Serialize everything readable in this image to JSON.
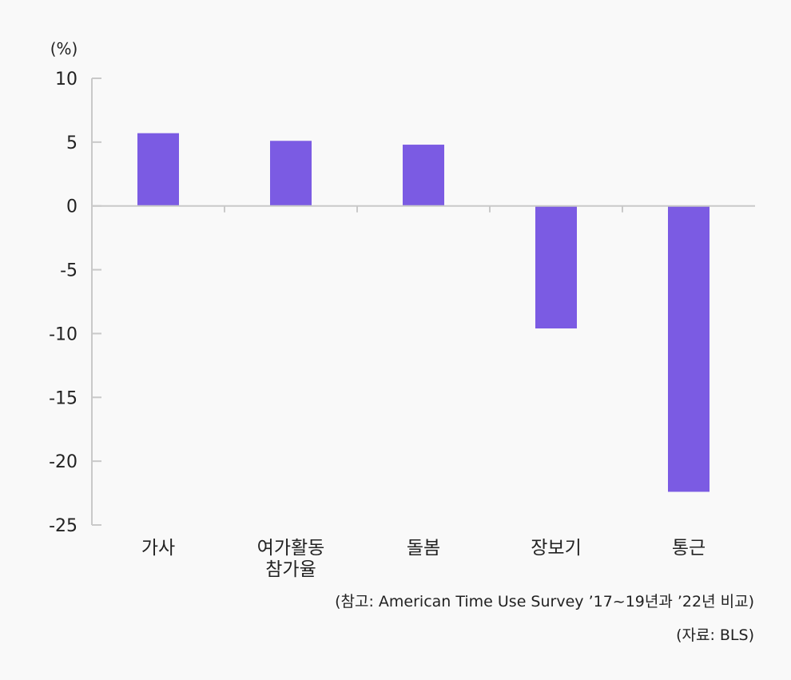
{
  "chart_data": {
    "type": "bar",
    "y_unit": "(%)",
    "categories": [
      [
        "가사"
      ],
      [
        "여가활동",
        "참가율"
      ],
      [
        "돌봄"
      ],
      [
        "장보기"
      ],
      [
        "통근"
      ]
    ],
    "values": [
      5.7,
      5.1,
      4.8,
      -9.6,
      -22.4
    ],
    "ylim": [
      -25,
      10
    ],
    "yticks": [
      10,
      5,
      0,
      -5,
      -10,
      -15,
      -20,
      -25
    ],
    "bar_color": "#7b5be3",
    "axis_color": "#c9c9c9",
    "grid": false,
    "legend": "none"
  },
  "notes": {
    "reference": "(참고: American Time Use Survey ’17~19년과 ’22년 비교)",
    "source": "(자료: BLS)"
  }
}
